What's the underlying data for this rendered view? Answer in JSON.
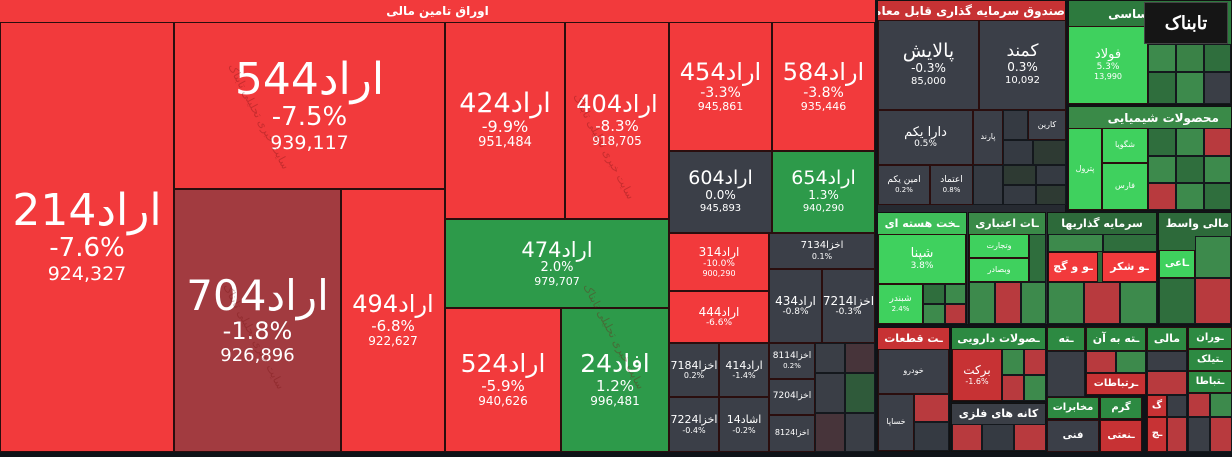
{
  "sections": {
    "tamin": "اوراق تامین مالی",
    "sandogh": "صندوق سرمایه گذاری قابل معامله",
    "felezat": "فلزات اساسی",
    "shimiyaei": "محصولات شیمیایی",
    "sakht": "ـخت هسته ای",
    "etebari": "ـات اعتباری",
    "sarmaye": "سرمایه گذاریها",
    "vaset": "مالی واسط",
    "ghataat": "ـت قطعات",
    "daruei": "ـصولات دارویی",
    "kane": "کانه های فلزی"
  },
  "watermark": "سایت خبری تحلیلی تابناک",
  "logo": "تابناک",
  "tiles": {
    "t214": {
      "name": "اراد214",
      "pct": "-7.6%",
      "val": "924,327"
    },
    "t544": {
      "name": "اراد544",
      "pct": "-7.5%",
      "val": "939,117"
    },
    "t704": {
      "name": "اراد704",
      "pct": "-1.8%",
      "val": "926,896"
    },
    "t494": {
      "name": "اراد494",
      "pct": "-6.8%",
      "val": "922,627"
    },
    "t424": {
      "name": "اراد424",
      "pct": "-9.9%",
      "val": "951,484"
    },
    "t404": {
      "name": "اراد404",
      "pct": "-8.3%",
      "val": "918,705"
    },
    "t474": {
      "name": "اراد474",
      "pct": "2.0%",
      "val": "979,707"
    },
    "t524": {
      "name": "اراد524",
      "pct": "-5.9%",
      "val": "940,626"
    },
    "t24": {
      "name": "افاد24",
      "pct": "1.2%",
      "val": "996,481"
    },
    "t454": {
      "name": "اراد454",
      "pct": "-3.3%",
      "val": "945,861"
    },
    "t584": {
      "name": "اراد584",
      "pct": "-3.8%",
      "val": "935,446"
    },
    "t604": {
      "name": "اراد604",
      "pct": "0.0%",
      "val": "945,893"
    },
    "t654": {
      "name": "اراد654",
      "pct": "1.3%",
      "val": "940,290"
    },
    "t314": {
      "name": "اراد314",
      "pct": "-10.0%",
      "val": "900,290"
    },
    "t444": {
      "name": "اراد444",
      "pct": "-6.6%"
    },
    "t7134": {
      "name": "اخزا7134",
      "pct": "0.1%"
    },
    "t434": {
      "name": "اراد434",
      "pct": "-0.8%"
    },
    "t7214": {
      "name": "اخزا7214",
      "pct": "-0.3%"
    },
    "t7184": {
      "name": "اخزا7184",
      "pct": "0.2%"
    },
    "t414": {
      "name": "اراد414",
      "pct": "-1.4%"
    },
    "t8114": {
      "name": "اخزا8114",
      "pct": "0.2%"
    },
    "t7204": {
      "name": "اخزا7204"
    },
    "t7224": {
      "name": "اخزا7224",
      "pct": "-0.4%"
    },
    "t14": {
      "name": "اشاد14",
      "pct": "-0.2%"
    },
    "t8124": {
      "name": "اخزا8124"
    },
    "palayesh": {
      "name": "پالایش",
      "pct": "-0.3%",
      "val": "85,000"
    },
    "kamand": {
      "name": "کمند",
      "pct": "0.3%",
      "val": "10,092"
    },
    "darayekom": {
      "name": "دارا یکم",
      "pct": "0.5%"
    },
    "parand": {
      "name": "پارند"
    },
    "karin": {
      "name": "کارین"
    },
    "aminyekom": {
      "name": "امین یکم",
      "pct": "0.2%"
    },
    "etemad": {
      "name": "اعتماد",
      "pct": "0.8%"
    },
    "foolad": {
      "name": "فولاد",
      "pct": "5.3%",
      "val": "13,990"
    },
    "shegoya": {
      "name": "شگویا"
    },
    "petrol": {
      "name": "پترول"
    },
    "fars": {
      "name": "فارس"
    },
    "shina": {
      "name": "شپنا",
      "pct": "3.8%"
    },
    "shbandar": {
      "name": "شبندر",
      "pct": "2.4%"
    },
    "vtejarat": {
      "name": "وتجارت"
    },
    "vsaderat": {
      "name": "وبصادر"
    },
    "khodro": {
      "name": "خودرو"
    },
    "khsapa": {
      "name": "خساپا"
    },
    "barekat": {
      "name": "برکت",
      "pct": "-1.6%"
    },
    "ogach": {
      "name": "ـو و گچ"
    },
    "oshekar": {
      "name": "ـو شکر"
    },
    "eaai": {
      "name": "ـاعی"
    },
    "ete": {
      "name": "ـته"
    },
    "beteaan": {
      "name": "ـته به آن"
    },
    "mali": {
      "name": "مالی"
    },
    "ooran": {
      "name": "ـوران"
    },
    "irtebatat": {
      "name": "ـرتباطات"
    },
    "mokhaberat": {
      "name": "مخابرات"
    },
    "garm": {
      "name": "گرم"
    },
    "fani": {
      "name": "فنی"
    },
    "sanati": {
      "name": "ـنعتی"
    },
    "teelik": {
      "name": "ـتیلک"
    },
    "etebarat": {
      "name": "ـتباطا"
    },
    "g": {
      "name": "گ"
    },
    "ch": {
      "name": "ـچ"
    }
  },
  "colors": {
    "red": "#f23a3c",
    "dark_red": "#a23b40",
    "green": "#2d9a4a",
    "light_green": "#3fd15e",
    "dark_grey": "#3b3f48",
    "background": "#0f1318"
  }
}
